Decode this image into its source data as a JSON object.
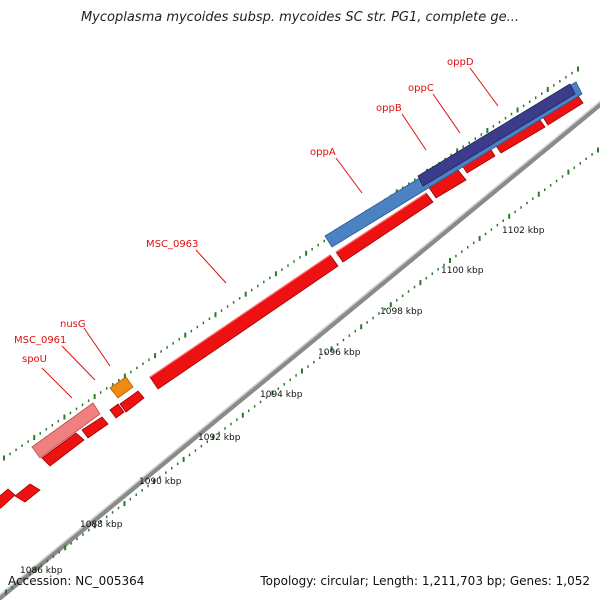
{
  "title": "Mycoplasma mycoides subsp. mycoides SC str. PG1, complete ge...",
  "footer": {
    "accession": "Accession: NC_005364",
    "info": "Topology: circular; Length: 1,211,703 bp; Genes: 1,052"
  },
  "map": {
    "kbp_ticks": [
      "1086 kbp",
      "1088 kbp",
      "1090 kbp",
      "1092 kbp",
      "1094 kbp",
      "1096 kbp",
      "1098 kbp",
      "1100 kbp",
      "1102 kbp"
    ],
    "gene_labels": [
      "spoU",
      "MSC_0961",
      "nusG",
      "MSC_0963",
      "oppA",
      "oppB",
      "oppC",
      "oppD"
    ]
  },
  "colors": {
    "forward_cds": "#ee1111",
    "backbone": "#909090",
    "oppA": "#4a82c4",
    "oppD": "#3c3c8c",
    "nusG": "#f08a10",
    "spoU": "#f08080",
    "tick": "#2a7a2a"
  }
}
